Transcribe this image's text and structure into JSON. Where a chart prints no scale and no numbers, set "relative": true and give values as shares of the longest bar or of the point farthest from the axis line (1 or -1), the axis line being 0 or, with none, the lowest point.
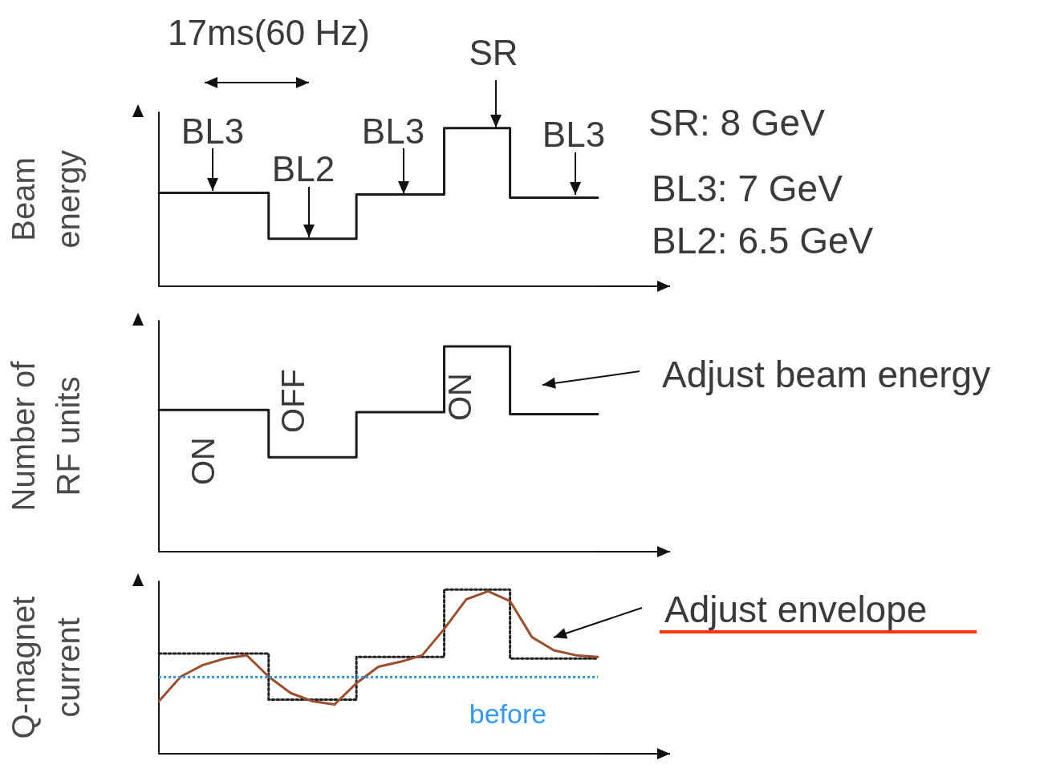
{
  "chart_data": [
    {
      "type": "step",
      "relative": true,
      "ylabel": "Beam\nenergy",
      "marker": "none",
      "line_style": "solid",
      "categories": [
        null,
        null,
        null,
        null,
        null,
        null,
        null,
        null,
        null,
        null,
        null,
        null,
        null,
        null,
        null,
        null,
        null,
        null,
        null,
        null,
        null
      ],
      "annotations": [
        "17ms(60 Hz)",
        "BL3",
        "BL2",
        "BL3",
        "SR",
        "BL3",
        "SR: 8 GeV",
        "BL3: 7 GeV",
        "BL2: 6.5 GeV"
      ],
      "series": [
        {
          "color": "#1a1a1a",
          "values": [
            0.59,
            0.59,
            0.59,
            0.59,
            0.59,
            0.3,
            0.3,
            0.3,
            0.3,
            0.58,
            0.58,
            0.58,
            0.58,
            1,
            1,
            1,
            0.56,
            0.56,
            0.56,
            0.56,
            0.56
          ]
        }
      ]
    },
    {
      "type": "step",
      "relative": true,
      "ylabel": "Number of\nRF units",
      "marker": "none",
      "line_style": "solid",
      "categories": [
        null,
        null,
        null,
        null,
        null,
        null,
        null,
        null,
        null,
        null,
        null,
        null,
        null,
        null,
        null,
        null,
        null,
        null,
        null,
        null,
        null
      ],
      "annotations": [
        "ON",
        "OFF",
        "ON",
        "Adjust beam energy"
      ],
      "series": [
        {
          "color": "#1a1a1a",
          "values": [
            0.69,
            0.69,
            0.69,
            0.69,
            0.69,
            0.46,
            0.46,
            0.46,
            0.46,
            0.68,
            0.68,
            0.68,
            0.68,
            1,
            1,
            1,
            0.67,
            0.67,
            0.67,
            0.67,
            0.67
          ]
        }
      ]
    },
    {
      "type": "step",
      "relative": true,
      "ylabel": "Q-magnet\ncurrent",
      "marker": "none",
      "categories": [
        null,
        null,
        null,
        null,
        null,
        null,
        null,
        null,
        null,
        null,
        null,
        null,
        null,
        null,
        null,
        null,
        null,
        null,
        null,
        null,
        null
      ],
      "annotations": [
        "Adjust envelope"
      ],
      "ref_lines": [
        {
          "axis": "y",
          "value": 0.47,
          "label": "before",
          "color": "#3399ee",
          "line_style": "dotted"
        }
      ],
      "series": [
        {
          "color": "#222222",
          "line_style": "dotted",
          "values": [
            0.61,
            0.61,
            0.61,
            0.61,
            0.61,
            0.33,
            0.33,
            0.33,
            0.33,
            0.59,
            0.59,
            0.59,
            0.59,
            1,
            1,
            1,
            0.58,
            0.58,
            0.58,
            0.58,
            0.58
          ]
        },
        {
          "type": "line",
          "color": "#9b4f2e",
          "line_style": "solid",
          "values": [
            0.32,
            0.47,
            0.54,
            0.58,
            0.6,
            0.47,
            0.37,
            0.32,
            0.3,
            0.43,
            0.53,
            0.56,
            0.6,
            0.76,
            0.94,
            0.99,
            0.93,
            0.71,
            0.63,
            0.6,
            0.59
          ]
        }
      ]
    }
  ]
}
